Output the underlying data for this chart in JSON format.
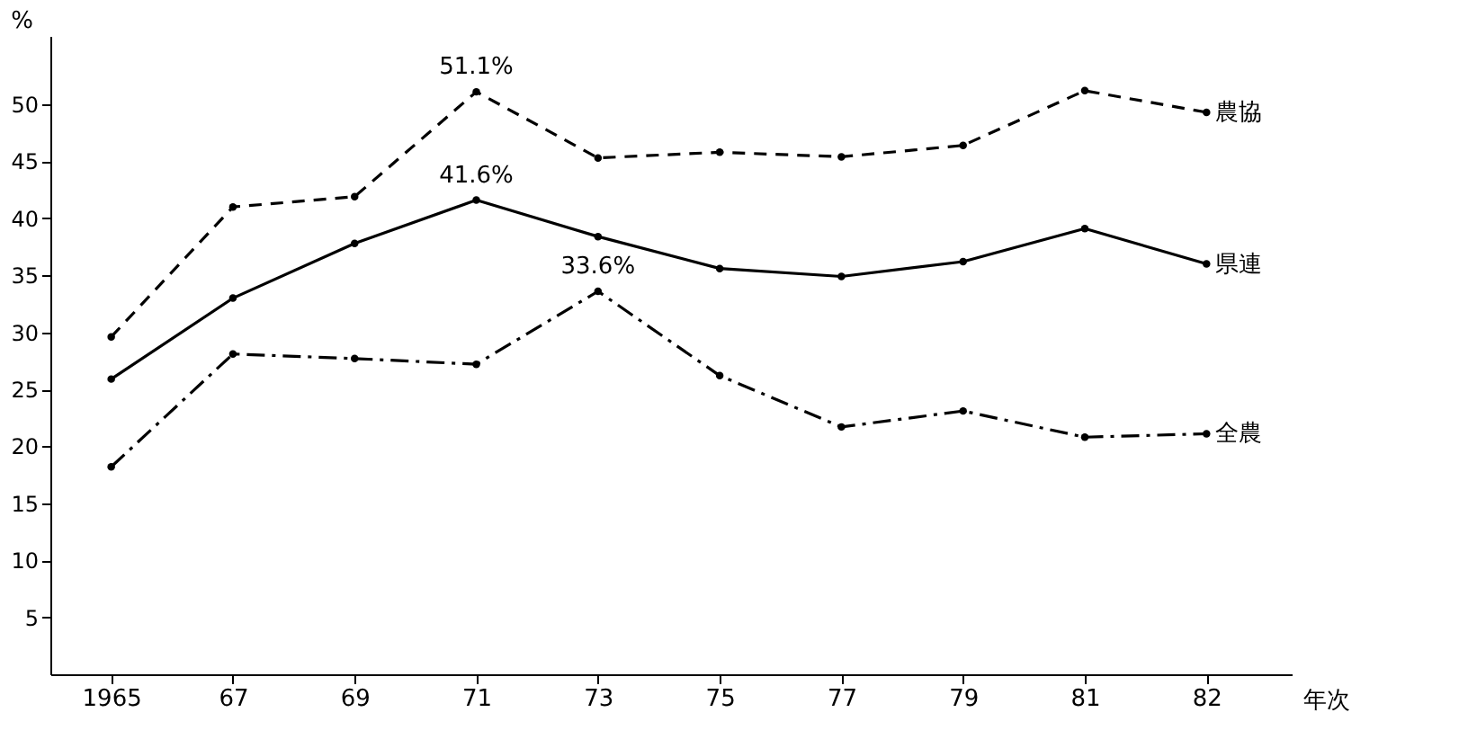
{
  "chart_data": {
    "type": "line",
    "ylabel": "%",
    "xlabel": "年次",
    "categories": [
      "1965",
      "67",
      "69",
      "71",
      "73",
      "75",
      "77",
      "79",
      "81",
      "82"
    ],
    "ylim": [
      0,
      56
    ],
    "yticks": [
      5,
      10,
      15,
      20,
      25,
      30,
      35,
      40,
      45,
      50
    ],
    "marker": "circle",
    "series": [
      {
        "name": "農協",
        "color": "#000000",
        "line_style": "dashed",
        "values": [
          29.6,
          41.0,
          41.9,
          51.1,
          45.3,
          45.8,
          45.4,
          46.4,
          51.2,
          49.3
        ]
      },
      {
        "name": "県連",
        "color": "#000000",
        "line_style": "solid",
        "values": [
          25.9,
          33.0,
          37.8,
          41.6,
          38.4,
          35.6,
          34.9,
          36.2,
          39.1,
          36.0
        ]
      },
      {
        "name": "全農",
        "color": "#000000",
        "line_style": "dashdot",
        "values": [
          18.2,
          28.1,
          27.7,
          27.2,
          33.6,
          26.2,
          21.7,
          23.1,
          20.8,
          21.1
        ]
      }
    ],
    "annotations": [
      {
        "text": "51.1%",
        "x": "71",
        "y": 51.1
      },
      {
        "text": "41.6%",
        "x": "71",
        "y": 41.6
      },
      {
        "text": "33.6%",
        "x": "73",
        "y": 33.6
      }
    ]
  }
}
